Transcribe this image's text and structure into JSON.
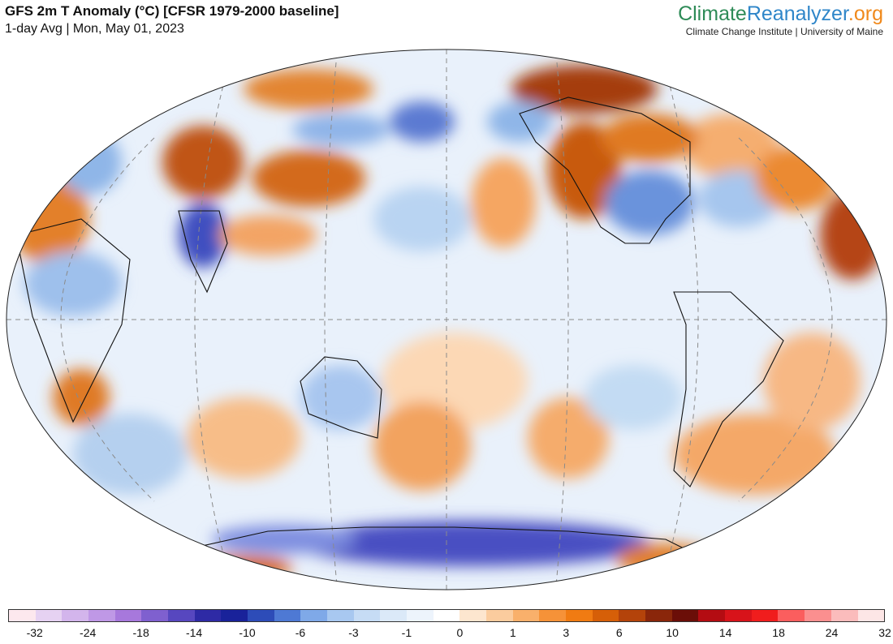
{
  "header": {
    "title": "GFS 2m T Anomaly (°C) [CFSR 1979-2000 baseline]",
    "subtitle": "1-day Avg | Mon, May 01, 2023"
  },
  "brand": {
    "name_part1": "Climate",
    "name_part2": "Reanalyzer",
    "name_part3": ".org",
    "tagline": "Climate Change Institute | University of Maine",
    "colors": {
      "part1": "#2e8b57",
      "part2": "#2f86c9",
      "part3": "#f0891b"
    }
  },
  "map": {
    "projection": "Kavrayskiy/Winkel-style world map centered on the Pacific",
    "equator_line": "dashed gray",
    "features": [
      {
        "region": "North America (central/eastern US)",
        "anomaly": "cold"
      },
      {
        "region": "Western Canada / Alaska",
        "anomaly": "warm"
      },
      {
        "region": "Western Europe / Iberia",
        "anomaly": "warm"
      },
      {
        "region": "India",
        "anomaly": "cold"
      },
      {
        "region": "Central Asia / Siberia",
        "anomaly": "warm"
      },
      {
        "region": "Antarctica interior",
        "anomaly": "cold"
      },
      {
        "region": "New Zealand area",
        "anomaly": "warm"
      }
    ]
  },
  "legend": {
    "colors": [
      "#fde8ee",
      "#e6d2f2",
      "#d3b5ec",
      "#bf98e6",
      "#a778dc",
      "#7f60cf",
      "#5747bf",
      "#2e2aa5",
      "#19229a",
      "#2d4cb8",
      "#4e79d4",
      "#7fa9e8",
      "#a8c8f0",
      "#c6dcf5",
      "#dbe9f8",
      "#edf4fc",
      "#ffffff",
      "#fde6cf",
      "#fbcc9e",
      "#f9b06b",
      "#f69238",
      "#f07b12",
      "#d65f08",
      "#b4430a",
      "#8a260a",
      "#6b0e08",
      "#b40c12",
      "#d8131a",
      "#f01d1d",
      "#fb5e5e",
      "#fb8f8f",
      "#fbbcbc",
      "#fde6e6"
    ],
    "ticks": [
      "-32",
      "-24",
      "-18",
      "-14",
      "-10",
      "-6",
      "-3",
      "-1",
      "0",
      "1",
      "3",
      "6",
      "10",
      "14",
      "18",
      "24",
      "32"
    ]
  }
}
